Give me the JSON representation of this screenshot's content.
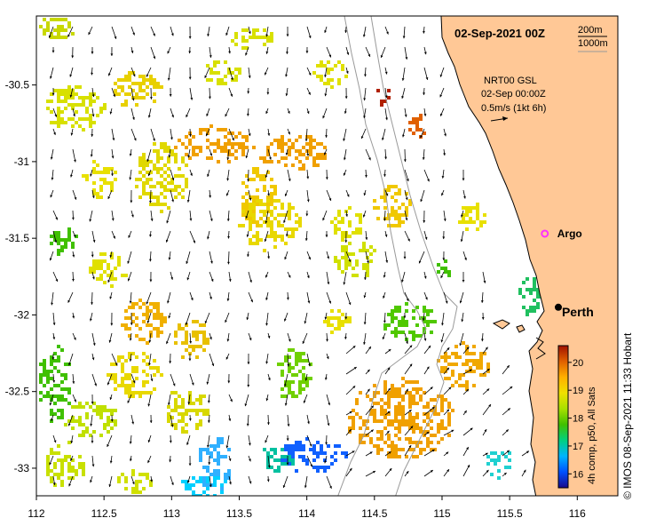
{
  "map": {
    "date_label": "02-Sep-2021 00Z",
    "contour_labels": [
      "200m",
      "1000m"
    ],
    "info_lines": [
      "NRT00 GSL",
      "02-Sep 00:00Z",
      "0.5m/s (1kt 6h)"
    ],
    "lon_ticks": [
      "112",
      "112.5",
      "113",
      "113.5",
      "114",
      "114.5",
      "115",
      "115.5",
      "116"
    ],
    "lat_ticks": [
      "-30.5",
      "-31",
      "-31.5",
      "-32",
      "-32.5",
      "-33"
    ],
    "places": [
      {
        "name": "Argo",
        "lon": 115.76,
        "lat": -31.47,
        "marker": "magenta-circle"
      },
      {
        "name": "Perth",
        "lon": 115.86,
        "lat": -31.95,
        "marker": "black-dot"
      }
    ],
    "colorbar": {
      "label": "4h comp, p50, All Sats",
      "ticks": [
        "16",
        "17",
        "18",
        "19",
        "20"
      ],
      "min": 15.5,
      "max": 20.6,
      "colors": [
        "#1a0a8c",
        "#0050ff",
        "#00b4ff",
        "#00d080",
        "#40c000",
        "#a8e000",
        "#f0e000",
        "#ffb000",
        "#e06000",
        "#a01000"
      ]
    },
    "land_color": "#ffc896",
    "credit": "© IMOS 08-Sep-2021 11:33 Hobart"
  }
}
